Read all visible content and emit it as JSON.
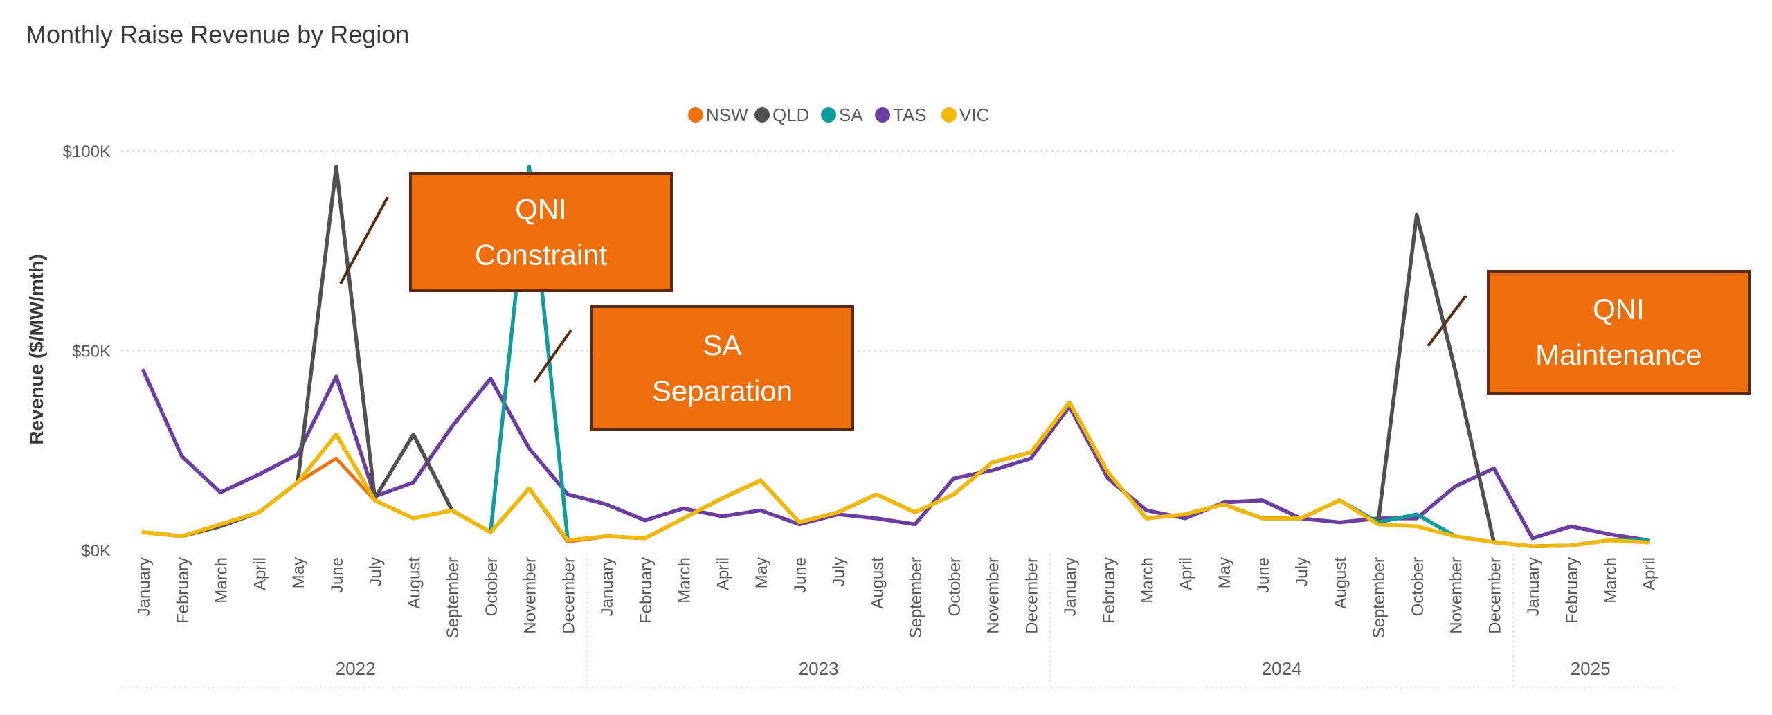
{
  "chart_data": {
    "type": "line",
    "title": "Monthly Raise Revenue by Region",
    "xlabel": "",
    "ylabel": "Revenue ($/MW/mth)",
    "ylim": [
      0,
      100000
    ],
    "yticks": [
      {
        "value": 0,
        "label": "$0K"
      },
      {
        "value": 50000,
        "label": "$50K"
      },
      {
        "value": 100000,
        "label": "$100K"
      }
    ],
    "grid": true,
    "legend_position": "top-center",
    "categories": [
      "January",
      "February",
      "March",
      "April",
      "May",
      "June",
      "July",
      "August",
      "September",
      "October",
      "November",
      "December",
      "January",
      "February",
      "March",
      "April",
      "May",
      "June",
      "July",
      "August",
      "September",
      "October",
      "November",
      "December",
      "January",
      "February",
      "March",
      "April",
      "May",
      "June",
      "July",
      "August",
      "September",
      "October",
      "November",
      "December",
      "January",
      "February",
      "March",
      "April"
    ],
    "years": [
      {
        "label": "2022",
        "start": 0,
        "end": 11
      },
      {
        "label": "2023",
        "start": 12,
        "end": 23
      },
      {
        "label": "2024",
        "start": 24,
        "end": 35
      },
      {
        "label": "2025",
        "start": 36,
        "end": 39
      }
    ],
    "series": [
      {
        "name": "NSW",
        "color": "#F2700E",
        "values": [
          4500,
          3500,
          6500,
          9500,
          17000,
          23000,
          12500,
          8000,
          10000,
          4500,
          15500,
          2200,
          3500,
          3000,
          8000,
          13000,
          17500,
          7000,
          9500,
          14000,
          9500,
          14000,
          22000,
          24500,
          37000,
          19500,
          8000,
          9000,
          11500,
          8000,
          8000,
          12500,
          6500,
          6000,
          3500,
          2000,
          1000,
          1200,
          2500,
          2000
        ]
      },
      {
        "name": "QLD",
        "color": "#505050",
        "values": [
          4500,
          3500,
          6000,
          9500,
          17000,
          96000,
          13000,
          29000,
          10000,
          4500,
          15500,
          2200,
          3500,
          3000,
          8000,
          13000,
          17500,
          7000,
          9500,
          14000,
          9500,
          14000,
          22000,
          24500,
          37000,
          19500,
          8000,
          9000,
          11500,
          8000,
          8000,
          12500,
          7000,
          84000,
          45000,
          2000,
          1000,
          1200,
          2500,
          2000
        ]
      },
      {
        "name": "SA",
        "color": "#119C9C",
        "values": [
          4500,
          3500,
          6500,
          9500,
          17000,
          29000,
          12500,
          8000,
          10000,
          4500,
          96000,
          2500,
          3500,
          3000,
          8000,
          13000,
          17500,
          7000,
          9500,
          14000,
          9500,
          14000,
          22000,
          24500,
          37000,
          19500,
          8000,
          9000,
          11500,
          8000,
          8000,
          12500,
          7000,
          9000,
          3500,
          2000,
          1000,
          1200,
          2500,
          2500
        ]
      },
      {
        "name": "TAS",
        "color": "#6B3FA0",
        "values": [
          45000,
          23500,
          14500,
          19000,
          24000,
          43500,
          13500,
          17000,
          31000,
          43000,
          25500,
          14000,
          11500,
          7500,
          10500,
          8500,
          10000,
          6500,
          9000,
          8000,
          6500,
          18000,
          20000,
          23000,
          36000,
          18000,
          10000,
          8000,
          12000,
          12500,
          8000,
          7000,
          8000,
          8000,
          16000,
          20500,
          3000,
          6000,
          4000,
          2500
        ]
      },
      {
        "name": "VIC",
        "color": "#F5B800",
        "values": [
          4500,
          3500,
          6500,
          9500,
          17000,
          29000,
          12500,
          8000,
          10000,
          4500,
          15500,
          2500,
          3500,
          3000,
          8000,
          13000,
          17500,
          7000,
          9500,
          14000,
          9500,
          14000,
          22000,
          24500,
          37000,
          19500,
          8000,
          9000,
          11500,
          8000,
          8000,
          12500,
          6500,
          6000,
          3500,
          2000,
          1000,
          1200,
          2500,
          2000
        ]
      }
    ],
    "annotations": [
      {
        "lines": [
          "QNI",
          "Constraint"
        ]
      },
      {
        "lines": [
          "SA",
          "Separation"
        ]
      },
      {
        "lines": [
          "QNI",
          "Maintenance"
        ]
      }
    ]
  }
}
